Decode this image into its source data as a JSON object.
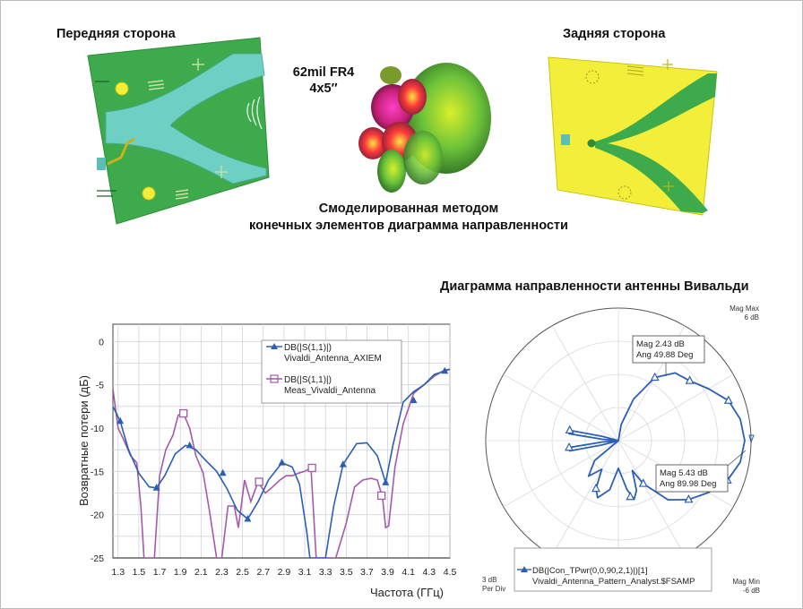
{
  "labels": {
    "front_side": "Передняя сторона",
    "back_side": "Задняя сторона",
    "board_line1": "62mil FR4",
    "board_line2": "4x5″",
    "sim_line1": "Смоделированная методом",
    "sim_line2": "конечных элементов диаграмма направленности",
    "polar_title": "Диаграмма направленности антенны Вивальди"
  },
  "colors": {
    "simulated": "#2b5fb4",
    "measured": "#a559a8",
    "pcb_green": "#3daa4c",
    "pcb_yellow": "#f2ee3a",
    "pcb_cyan": "#6ecfc3"
  },
  "chart_data": [
    {
      "type": "line",
      "xlabel": "Частота (ГГц)",
      "ylabel": "Возвратные потери (дБ)",
      "xlim": [
        1.25,
        4.5
      ],
      "ylim": [
        -25,
        2
      ],
      "xticks": [
        "1.3",
        "1.5",
        "1.7",
        "1.9",
        "2.1",
        "2.3",
        "2.5",
        "2.7",
        "2.9",
        "3.1",
        "3.3",
        "3.5",
        "3.7",
        "3.9",
        "4.1",
        "4.3",
        "4.5"
      ],
      "yticks": [
        "0",
        "-5",
        "-10",
        "-15",
        "-20",
        "-25"
      ],
      "grid": true,
      "legend": "top-center",
      "series": [
        {
          "name_line1": "DB(|S(1,1)|)",
          "name_line2": "Vivaldi_Antenna_AXIEM",
          "marker": "triangle",
          "x": [
            1.25,
            1.32,
            1.4,
            1.5,
            1.6,
            1.67,
            1.75,
            1.85,
            1.95,
            2.05,
            2.15,
            2.25,
            2.35,
            2.45,
            2.55,
            2.65,
            2.75,
            2.88,
            2.98,
            3.05,
            3.12,
            3.15,
            3.3,
            3.38,
            3.47,
            3.6,
            3.7,
            3.8,
            3.88,
            3.95,
            4.05,
            4.15,
            4.25,
            4.35,
            4.45,
            4.5
          ],
          "y": [
            -7.5,
            -9.2,
            -12.5,
            -15.2,
            -16.8,
            -16.9,
            -15.5,
            -13,
            -12,
            -12.5,
            -13.8,
            -15,
            -17,
            -19.5,
            -20.5,
            -18.5,
            -16,
            -14,
            -14.5,
            -16.5,
            -22,
            -25,
            -25,
            -19,
            -14.2,
            -11.8,
            -11.7,
            -13.2,
            -16.3,
            -12,
            -7,
            -5.8,
            -5,
            -3.8,
            -3.4,
            -3.2
          ]
        },
        {
          "name_line1": "DB(|S(1,1)|)",
          "name_line2": "Meas_Vivaldi_Antenna",
          "marker": "square",
          "x": [
            1.25,
            1.3,
            1.36,
            1.42,
            1.48,
            1.52,
            1.55,
            1.6,
            1.65,
            1.7,
            1.76,
            1.83,
            1.88,
            1.93,
            1.99,
            2.05,
            2.12,
            2.18,
            2.25,
            2.3,
            2.36,
            2.42,
            2.46,
            2.52,
            2.58,
            2.65,
            2.72,
            2.79,
            2.86,
            2.92,
            2.98,
            3.04,
            3.1,
            3.16,
            3.21,
            3.26,
            3.3,
            3.33,
            3.4,
            3.5,
            3.58,
            3.66,
            3.74,
            3.8,
            3.85,
            3.88,
            3.91,
            3.97,
            4.05,
            4.15,
            4.25,
            4.35,
            4.45,
            4.5
          ],
          "y": [
            -5.5,
            -10,
            -11.5,
            -13.2,
            -14,
            -19,
            -25,
            -25,
            -25,
            -15.5,
            -12.5,
            -10.8,
            -8.5,
            -8.3,
            -10,
            -13.2,
            -15.2,
            -19.5,
            -25,
            -25,
            -19,
            -19,
            -21.5,
            -16,
            -18.5,
            -16.2,
            -17.5,
            -16.8,
            -16,
            -15.5,
            -15.5,
            -15.2,
            -15,
            -14.6,
            -25,
            -25,
            -25,
            -25,
            -25,
            -21,
            -16.8,
            -16,
            -15.8,
            -16,
            -18,
            -21.5,
            -21.3,
            -14.5,
            -9.5,
            -6,
            -5,
            -4,
            -3.3,
            -3.2
          ]
        }
      ]
    },
    {
      "type": "polar",
      "scale_per_div": "3 dB",
      "per_div_label_1": "3 dB",
      "per_div_label_2": "Per Div",
      "mag_max_label_1": "Mag Max",
      "mag_max_label_2": "6 dB",
      "mag_min_label_1": "Mag Min",
      "mag_min_label_2": "-6 dB",
      "rlim_db": [
        -6,
        6
      ],
      "legend": "bottom",
      "series": [
        {
          "name_line1": "DB(|Con_TPwr(0,0,90,2,1)|)[1]",
          "name_line2": "Vivaldi_Antenna_Pattern_Analyst.$FSAMP",
          "angles_deg": [
            0,
            10,
            20,
            30,
            40,
            50,
            60,
            70,
            80,
            90,
            100,
            110,
            120,
            130,
            140,
            150,
            155,
            160,
            165,
            170,
            180,
            190,
            200,
            205,
            210,
            220,
            230,
            240,
            250,
            255,
            258,
            262,
            265,
            270,
            275,
            278,
            282,
            285,
            290,
            300,
            310,
            320,
            330,
            340,
            350,
            360
          ],
          "mag_db": [
            -6,
            -4.5,
            -2,
            0.6,
            2,
            2.43,
            3.4,
            4.6,
            5.2,
            5.43,
            5.2,
            4.5,
            3.4,
            2.3,
            1,
            -1.5,
            -3,
            -1.2,
            -0.5,
            -1.5,
            -3.5,
            -1.5,
            -0.5,
            -1.2,
            -3,
            -1.8,
            -3.2,
            -6,
            -6,
            -4.5,
            -1.5,
            -1.5,
            -4.5,
            -6,
            -4.5,
            -1.5,
            -1.5,
            -4.5,
            -6,
            -6,
            -6,
            -6,
            -6,
            -6,
            -6,
            -6
          ]
        }
      ],
      "annotations": [
        {
          "line1": "Mag 2.43 dB",
          "line2": "Ang 49.88 Deg"
        },
        {
          "line1": "Mag 5.43 dB",
          "line2": "Ang 89.98 Deg"
        }
      ]
    }
  ]
}
